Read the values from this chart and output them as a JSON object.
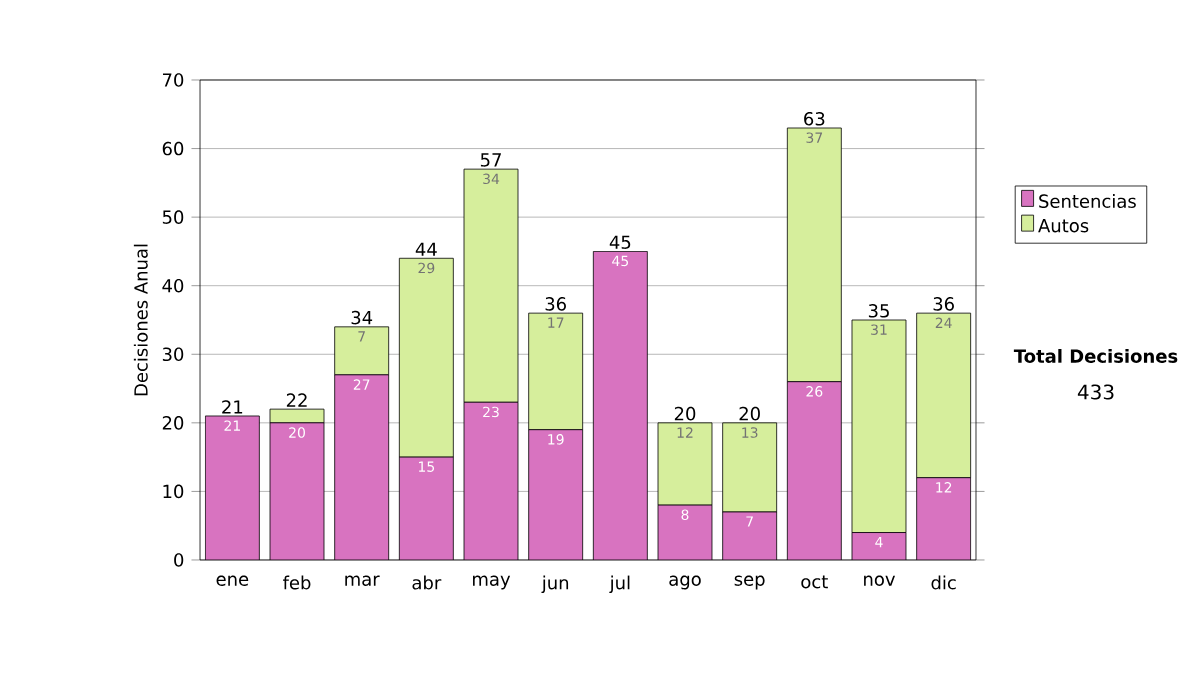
{
  "chart_data": {
    "type": "bar",
    "stacked": true,
    "ylabel": "Decisiones Anual",
    "categories": [
      "ene",
      "feb",
      "mar",
      "abr",
      "may",
      "jun",
      "jul",
      "ago",
      "sep",
      "oct",
      "nov",
      "dic"
    ],
    "series": [
      {
        "name": "Sentencias",
        "color": "#d873c0",
        "values": [
          21,
          20,
          27,
          15,
          23,
          19,
          45,
          8,
          7,
          26,
          4,
          12
        ],
        "value_labels": [
          "21",
          "20",
          "27",
          "15",
          "23",
          "19",
          "45",
          "8",
          "7",
          "26",
          "4",
          "12"
        ]
      },
      {
        "name": "Autos",
        "color": "#d6ee9c",
        "values": [
          0,
          2,
          7,
          29,
          34,
          17,
          0,
          12,
          13,
          37,
          31,
          24
        ],
        "value_labels": [
          null,
          null,
          "7",
          "29",
          "34",
          "17",
          null,
          "12",
          "13",
          "37",
          "31",
          "24"
        ]
      }
    ],
    "totals": [
      "21",
      "22",
      "34",
      "44",
      "57",
      "36",
      "45",
      "20",
      "20",
      "63",
      "35",
      "36"
    ],
    "ylim": [
      0,
      70
    ],
    "yticks": [
      0,
      10,
      20,
      30,
      40,
      50,
      60,
      70
    ],
    "grid": "y",
    "legend": "right",
    "annotations": [
      "Total Decisiones",
      "433"
    ]
  }
}
